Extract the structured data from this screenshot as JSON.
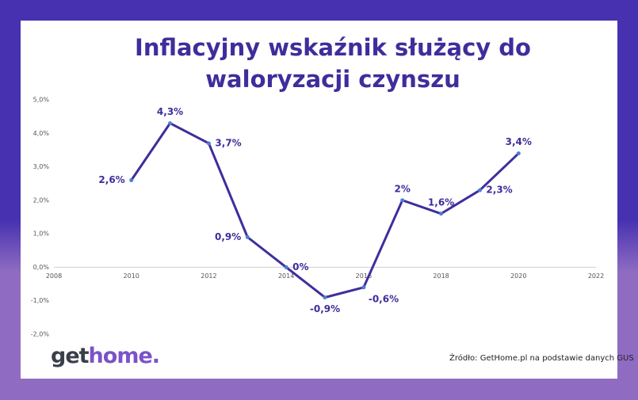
{
  "chart_data": {
    "type": "line",
    "title": "Inflacyjny wskaźnik służący do waloryzacji czynszu",
    "x": [
      2010,
      2011,
      2012,
      2013,
      2014,
      2015,
      2016,
      2017,
      2018,
      2019,
      2020
    ],
    "series": [
      {
        "name": "Inflacyjny wskaźnik",
        "color": "#3f2d9c",
        "values": [
          2.6,
          4.3,
          3.7,
          0.9,
          0,
          -0.9,
          -0.6,
          2,
          1.6,
          2.3,
          3.4
        ],
        "value_labels": [
          "2,6%",
          "4,3%",
          "3,7%",
          "0,9%",
          "0%",
          "-0,9%",
          "-0,6%",
          "2%",
          "1,6%",
          "2,3%",
          "3,4%"
        ]
      }
    ],
    "xlim": [
      2008,
      2022
    ],
    "xticks": [
      2008,
      2010,
      2012,
      2014,
      2016,
      2018,
      2020,
      2022
    ],
    "ylim": [
      -2,
      5
    ],
    "yticks": [
      {
        "value": -2,
        "label": "-2,0%"
      },
      {
        "value": -1,
        "label": "-1,0%"
      },
      {
        "value": 0,
        "label": "0,0%"
      },
      {
        "value": 1,
        "label": "1,0%"
      },
      {
        "value": 2,
        "label": "2,0%"
      },
      {
        "value": 3,
        "label": "3,0%"
      },
      {
        "value": 4,
        "label": "4,0%"
      },
      {
        "value": 5,
        "label": "5,0%"
      }
    ],
    "grid": false,
    "source": "Źródło: GetHome.pl na podstawie danych GUS"
  },
  "logo": [
    "get",
    "home."
  ]
}
